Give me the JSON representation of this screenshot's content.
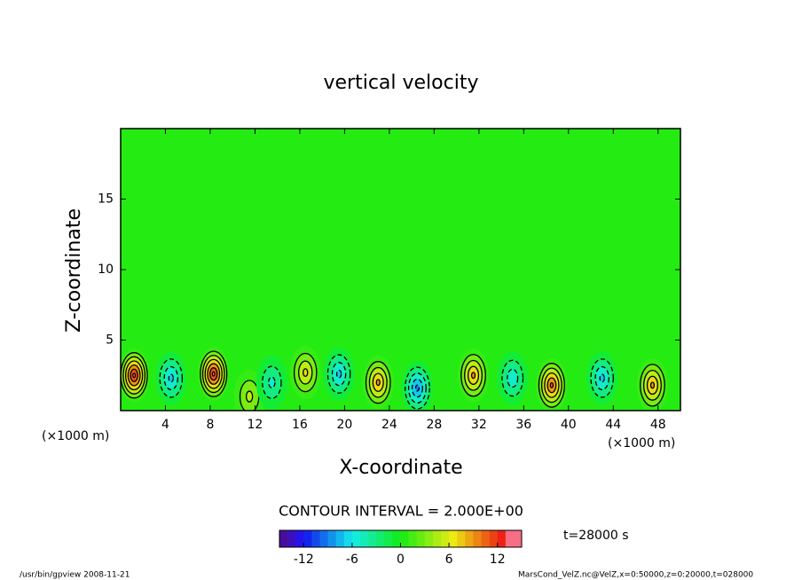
{
  "chart_data": {
    "type": "contour",
    "title": "vertical velocity",
    "x_label": "X-coordinate",
    "y_label": "Z-coordinate",
    "x_unit_label": "(×1000 m)",
    "y_unit_label": "(×1000 m)",
    "xlim": [
      0,
      50
    ],
    "ylim": [
      0,
      20
    ],
    "xticks": [
      4,
      8,
      12,
      16,
      20,
      24,
      28,
      32,
      36,
      40,
      44,
      48
    ],
    "yticks": [
      5,
      10,
      15
    ],
    "contour_label": "CONTOUR INTERVAL = 2.000E+00",
    "contour_interval": 2,
    "clim": [
      -15,
      15
    ],
    "cticks": [
      -12,
      -6,
      0,
      6,
      12
    ],
    "time_label": "t=28000 s",
    "footer_left": "/usr/bin/gpview  2008-11-21",
    "footer_right": "MarsCond_VelZ.nc@VelZ,x=0:50000,z=0:20000,t=028000",
    "cells": [
      {
        "x": 1.2,
        "z": 2.5,
        "value": 12
      },
      {
        "x": 4.5,
        "z": 2.3,
        "value": -6
      },
      {
        "x": 8.3,
        "z": 2.6,
        "value": 12
      },
      {
        "x": 11.5,
        "z": 1.0,
        "value": 4
      },
      {
        "x": 13.5,
        "z": 2.0,
        "value": -4
      },
      {
        "x": 16.5,
        "z": 2.7,
        "value": 6
      },
      {
        "x": 19.5,
        "z": 2.6,
        "value": -6
      },
      {
        "x": 23.0,
        "z": 2.0,
        "value": 8
      },
      {
        "x": 26.5,
        "z": 1.6,
        "value": -8
      },
      {
        "x": 31.5,
        "z": 2.5,
        "value": 8
      },
      {
        "x": 35.0,
        "z": 2.3,
        "value": -5
      },
      {
        "x": 38.5,
        "z": 1.8,
        "value": 10
      },
      {
        "x": 43.0,
        "z": 2.3,
        "value": -6
      },
      {
        "x": 47.5,
        "z": 1.8,
        "value": 8
      }
    ]
  }
}
